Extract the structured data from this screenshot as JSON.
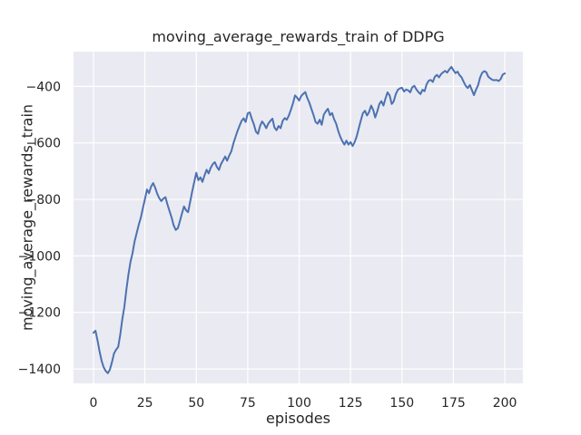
{
  "chart_data": {
    "type": "line",
    "title": "moving_average_rewards_train of DDPG",
    "xlabel": "episodes",
    "ylabel": "moving_average_rewards_train",
    "x_ticks": [
      0,
      25,
      50,
      75,
      100,
      125,
      150,
      175,
      200
    ],
    "y_ticks": [
      -400,
      -600,
      -800,
      -1000,
      -1200,
      -1400
    ],
    "xlim": [
      -9.7,
      208.8
    ],
    "ylim": [
      -1451,
      -277
    ],
    "grid": true,
    "legend_position": "none",
    "style": {
      "figure_bg": "#ffffff",
      "axes_bg": "#eaeaf2",
      "grid_color": "#ffffff",
      "line_color": "#4c72b0",
      "text_color": "#262626"
    },
    "series": [
      {
        "name": "moving_average_rewards_train",
        "x_start": 0,
        "x_step": 1,
        "values": [
          -1272,
          -1265,
          -1300,
          -1340,
          -1372,
          -1395,
          -1408,
          -1415,
          -1402,
          -1375,
          -1345,
          -1332,
          -1322,
          -1280,
          -1225,
          -1180,
          -1120,
          -1065,
          -1020,
          -990,
          -948,
          -920,
          -890,
          -865,
          -832,
          -800,
          -765,
          -778,
          -755,
          -742,
          -758,
          -780,
          -796,
          -806,
          -797,
          -792,
          -818,
          -842,
          -865,
          -892,
          -908,
          -902,
          -878,
          -850,
          -825,
          -838,
          -845,
          -808,
          -772,
          -738,
          -706,
          -732,
          -722,
          -738,
          -715,
          -695,
          -708,
          -688,
          -675,
          -668,
          -685,
          -696,
          -675,
          -662,
          -648,
          -663,
          -645,
          -630,
          -603,
          -580,
          -558,
          -540,
          -522,
          -513,
          -526,
          -495,
          -492,
          -515,
          -535,
          -560,
          -568,
          -540,
          -524,
          -534,
          -548,
          -532,
          -522,
          -514,
          -545,
          -555,
          -540,
          -548,
          -522,
          -512,
          -518,
          -503,
          -482,
          -460,
          -432,
          -440,
          -450,
          -434,
          -426,
          -420,
          -442,
          -458,
          -480,
          -502,
          -526,
          -532,
          -518,
          -536,
          -500,
          -488,
          -479,
          -502,
          -494,
          -516,
          -532,
          -558,
          -578,
          -594,
          -606,
          -592,
          -606,
          -597,
          -611,
          -597,
          -576,
          -548,
          -520,
          -495,
          -486,
          -503,
          -491,
          -468,
          -483,
          -510,
          -488,
          -462,
          -452,
          -468,
          -442,
          -421,
          -432,
          -462,
          -453,
          -427,
          -412,
          -407,
          -405,
          -418,
          -411,
          -414,
          -421,
          -403,
          -398,
          -410,
          -420,
          -427,
          -412,
          -417,
          -392,
          -380,
          -377,
          -384,
          -366,
          -359,
          -368,
          -357,
          -350,
          -345,
          -351,
          -340,
          -331,
          -342,
          -353,
          -348,
          -360,
          -368,
          -384,
          -398,
          -406,
          -395,
          -413,
          -431,
          -412,
          -396,
          -368,
          -352,
          -346,
          -350,
          -366,
          -372,
          -377,
          -378,
          -377,
          -381,
          -374,
          -358,
          -354
        ]
      }
    ]
  }
}
